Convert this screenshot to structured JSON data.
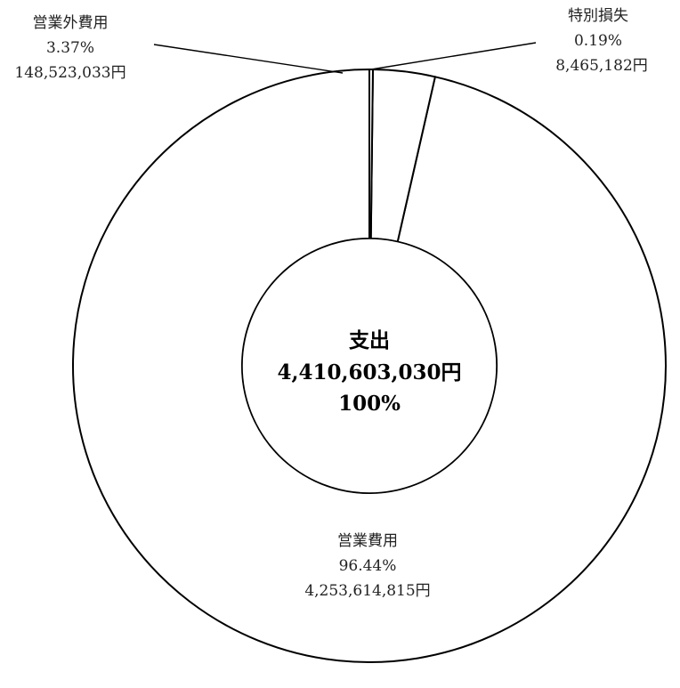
{
  "chart_data": {
    "type": "pie",
    "variant": "donut",
    "center": {
      "title": "支出",
      "total": "4,410,603,030円",
      "percent": "100%"
    },
    "slices": [
      {
        "name": "営業費用",
        "percent": 96.44,
        "percent_label": "96.44%",
        "value": 4253614815,
        "value_label": "4,253,614,815円"
      },
      {
        "name": "営業外費用",
        "percent": 3.37,
        "percent_label": "3.37%",
        "value": 148523033,
        "value_label": "148,523,033円"
      },
      {
        "name": "特別損失",
        "percent": 0.19,
        "percent_label": "0.19%",
        "value": 8465182,
        "value_label": "8,465,182円"
      }
    ],
    "start_angle_deg": 0,
    "direction": "counterclockwise",
    "colors": {
      "fill": "#ffffff",
      "stroke": "#000000"
    }
  }
}
